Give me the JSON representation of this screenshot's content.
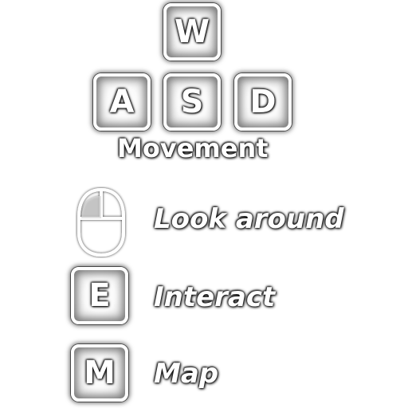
{
  "keys": {
    "w": "W",
    "a": "A",
    "s": "S",
    "d": "D",
    "e": "E",
    "m": "M"
  },
  "labels": {
    "movement": "Movement",
    "look_around": "Look around",
    "interact": "Interact",
    "map": "Map"
  },
  "icons": {
    "mouse": "mouse-icon"
  },
  "colors": {
    "key_face": "#ffffff",
    "key_border": "#ffffff",
    "text": "#ffffff",
    "shadow": "#000000"
  }
}
